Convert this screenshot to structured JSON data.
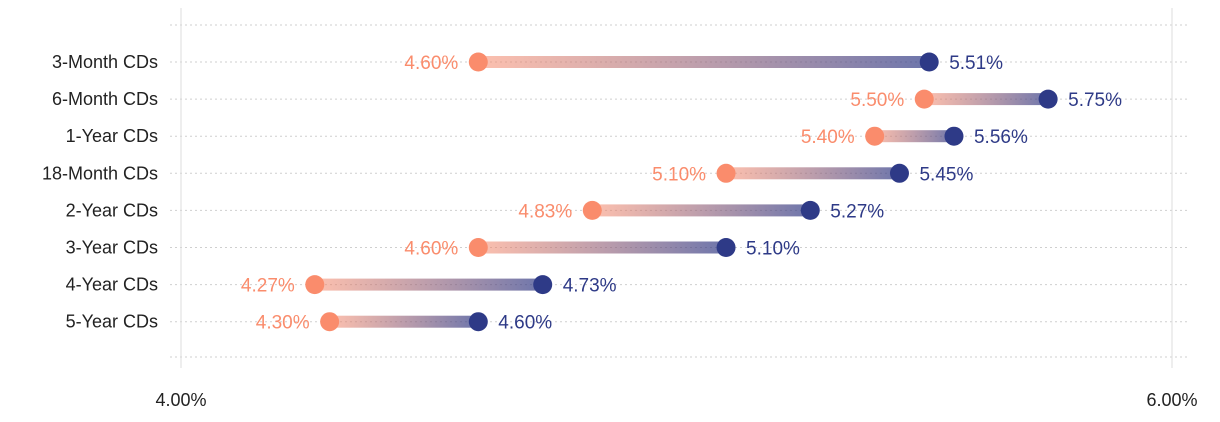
{
  "chart_data": {
    "type": "dumbbell",
    "xlim": [
      4.0,
      6.0
    ],
    "x_ticks": [
      "4.00%",
      "6.00%"
    ],
    "categories": [
      "3-Month CDs",
      "6-Month CDs",
      "1-Year CDs",
      "18-Month CDs",
      "2-Year CDs",
      "3-Year CDs",
      "4-Year CDs",
      "5-Year CDs"
    ],
    "series": [
      {
        "name": "low",
        "color": "#fa8c6c",
        "values": [
          4.6,
          5.5,
          5.4,
          5.1,
          4.83,
          4.6,
          4.27,
          4.3
        ],
        "labels": [
          "4.60%",
          "5.50%",
          "5.40%",
          "5.10%",
          "4.83%",
          "4.60%",
          "4.27%",
          "4.30%"
        ]
      },
      {
        "name": "high",
        "color": "#2e3a87",
        "values": [
          5.51,
          5.75,
          5.56,
          5.45,
          5.27,
          5.1,
          4.73,
          4.6
        ],
        "labels": [
          "5.51%",
          "5.75%",
          "5.56%",
          "5.45%",
          "5.27%",
          "5.10%",
          "4.73%",
          "4.60%"
        ]
      }
    ]
  }
}
